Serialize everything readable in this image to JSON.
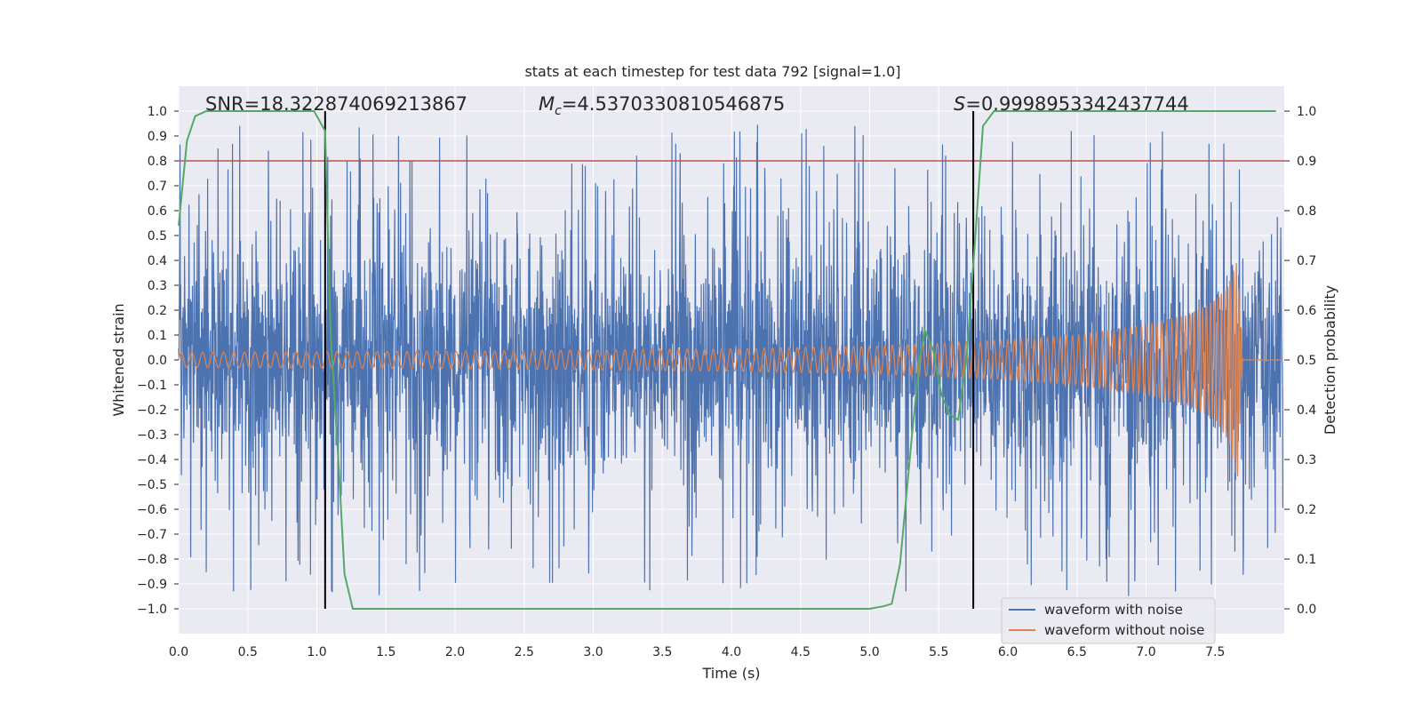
{
  "chart_data": {
    "type": "line",
    "title": "stats at each timestep for test data 792 [signal=1.0]",
    "xlabel": "Time (s)",
    "ylabel": "Whitened strain",
    "y2label": "Detection probability",
    "xlim": [
      0,
      8.0
    ],
    "ylim": [
      -1.1,
      1.1
    ],
    "y2lim": [
      -0.05,
      1.05
    ],
    "grid": true,
    "legend_position": "lower-right",
    "x_ticks": [
      "0.0",
      "0.5",
      "1.0",
      "1.5",
      "2.0",
      "2.5",
      "3.0",
      "3.5",
      "4.0",
      "4.5",
      "5.0",
      "5.5",
      "6.0",
      "6.5",
      "7.0",
      "7.5"
    ],
    "y_ticks": [
      "1.0",
      "0.9",
      "0.8",
      "0.7",
      "0.6",
      "0.5",
      "0.4",
      "0.3",
      "0.2",
      "0.1",
      "0.0",
      "−0.1",
      "−0.2",
      "−0.3",
      "−0.4",
      "−0.5",
      "−0.6",
      "−0.7",
      "−0.8",
      "−0.9",
      "−1.0"
    ],
    "y2_ticks": [
      "1.0",
      "0.9",
      "0.8",
      "0.7",
      "0.6",
      "0.5",
      "0.4",
      "0.3",
      "0.2",
      "0.1",
      "0.0"
    ],
    "annotations": {
      "snr": "SNR=18.322874069213867",
      "mc_symbol": "M",
      "mc_sub": "c",
      "mc_value": "=4.5370330810546875",
      "s_symbol": "S",
      "s_value": "=0.9998953342437744"
    },
    "threshold": {
      "y": 0.8,
      "color": "#c44e52"
    },
    "vertical_markers": [
      1.06,
      5.75
    ],
    "series": [
      {
        "name": "waveform with noise",
        "color": "#4c72b0",
        "description_values": {
          "amplitude_range": [
            -1.0,
            1.0
          ]
        }
      },
      {
        "name": "waveform without noise",
        "color": "#dd8452",
        "envelope": {
          "x": [
            0.0,
            2.0,
            4.0,
            5.0,
            6.0,
            6.5,
            7.0,
            7.3,
            7.5,
            7.6,
            7.66,
            7.7
          ],
          "upper": [
            0.03,
            0.035,
            0.045,
            0.055,
            0.08,
            0.1,
            0.14,
            0.18,
            0.24,
            0.3,
            0.4,
            0.0
          ],
          "lower": [
            -0.03,
            -0.035,
            -0.045,
            -0.055,
            -0.08,
            -0.1,
            -0.14,
            -0.18,
            -0.24,
            -0.33,
            -0.5,
            0.0
          ]
        }
      },
      {
        "name": "detection probability",
        "color": "#55a868",
        "axis": "right",
        "x": [
          0.0,
          0.06,
          0.12,
          0.2,
          0.4,
          0.6,
          0.8,
          0.98,
          1.06,
          1.1,
          1.16,
          1.2,
          1.26,
          1.32,
          1.4,
          2.0,
          3.0,
          4.0,
          5.0,
          5.1,
          5.16,
          5.22,
          5.3,
          5.36,
          5.4,
          5.46,
          5.52,
          5.58,
          5.64,
          5.7,
          5.76,
          5.82,
          5.9,
          6.0,
          7.0,
          7.94
        ],
        "y": [
          0.77,
          0.94,
          0.99,
          1.0,
          1.0,
          1.0,
          1.0,
          1.0,
          0.96,
          0.55,
          0.28,
          0.07,
          0.0,
          0.0,
          0.0,
          0.0,
          0.0,
          0.0,
          0.0,
          0.005,
          0.01,
          0.09,
          0.33,
          0.5,
          0.56,
          0.52,
          0.43,
          0.39,
          0.38,
          0.5,
          0.73,
          0.97,
          1.0,
          1.0,
          1.0,
          1.0
        ]
      }
    ],
    "legend_entries": [
      "waveform with noise",
      "waveform without noise"
    ]
  }
}
